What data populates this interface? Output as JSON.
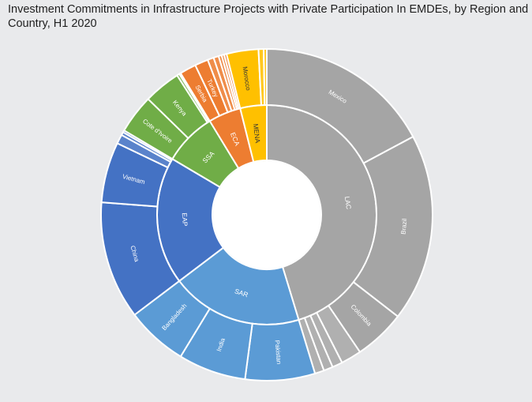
{
  "chart_data": {
    "type": "sunburst",
    "title": "Investment Commitments in Infrastructure Projects with Private Participation In EMDEs, by Region and Country, H1 2020",
    "start_angle_deg": 0,
    "regions": [
      {
        "name": "LAC",
        "color": "#a5a5a5",
        "value": 45.3,
        "countries": [
          {
            "name": "Mexico",
            "value": 17.2,
            "label": true
          },
          {
            "name": "Brazil",
            "value": 18.3,
            "label": true
          },
          {
            "name": "Colombia",
            "value": 5.0,
            "label": true
          },
          {
            "name": "",
            "value": 2.0,
            "label": false
          },
          {
            "name": "",
            "value": 1.0,
            "label": false
          },
          {
            "name": "",
            "value": 0.9,
            "label": false
          },
          {
            "name": "",
            "value": 0.9,
            "label": false
          }
        ]
      },
      {
        "name": "SAR",
        "color": "#5b9bd5",
        "value": 19.4,
        "countries": [
          {
            "name": "Pakistan",
            "value": 6.8,
            "label": true
          },
          {
            "name": "India",
            "value": 6.6,
            "label": true
          },
          {
            "name": "Bangladesh",
            "value": 6.0,
            "label": true
          }
        ]
      },
      {
        "name": "EAP",
        "color": "#4472c4",
        "value": 18.8,
        "countries": [
          {
            "name": "China",
            "value": 11.5,
            "label": true
          },
          {
            "name": "Vietnam",
            "value": 5.9,
            "label": true
          },
          {
            "name": "",
            "value": 0.9,
            "label": false
          },
          {
            "name": "",
            "value": 0.3,
            "label": false
          },
          {
            "name": "",
            "value": 0.2,
            "label": false
          }
        ]
      },
      {
        "name": "SSA",
        "color": "#70ad47",
        "value": 7.8,
        "countries": [
          {
            "name": "Cote d'Ivoire",
            "value": 3.8,
            "label": true
          },
          {
            "name": "Kenya",
            "value": 3.6,
            "label": true
          },
          {
            "name": "",
            "value": 0.25,
            "label": false
          },
          {
            "name": "",
            "value": 0.15,
            "label": false
          }
        ]
      },
      {
        "name": "ECA",
        "color": "#ed7d31",
        "value": 4.8,
        "countries": [
          {
            "name": "Serbia",
            "value": 1.6,
            "label": true
          },
          {
            "name": "Turkey",
            "value": 1.3,
            "label": true
          },
          {
            "name": "",
            "value": 0.6,
            "label": false
          },
          {
            "name": "",
            "value": 0.5,
            "label": false
          },
          {
            "name": "",
            "value": 0.3,
            "label": false
          },
          {
            "name": "",
            "value": 0.25,
            "label": false
          },
          {
            "name": "",
            "value": 0.25,
            "label": false
          }
        ]
      },
      {
        "name": "MENA",
        "color": "#ffc000",
        "value": 3.9,
        "countries": [
          {
            "name": "Morocco",
            "value": 3.1,
            "label": true
          },
          {
            "name": "",
            "value": 0.5,
            "label": false
          },
          {
            "name": "",
            "value": 0.3,
            "label": false
          }
        ]
      }
    ]
  }
}
